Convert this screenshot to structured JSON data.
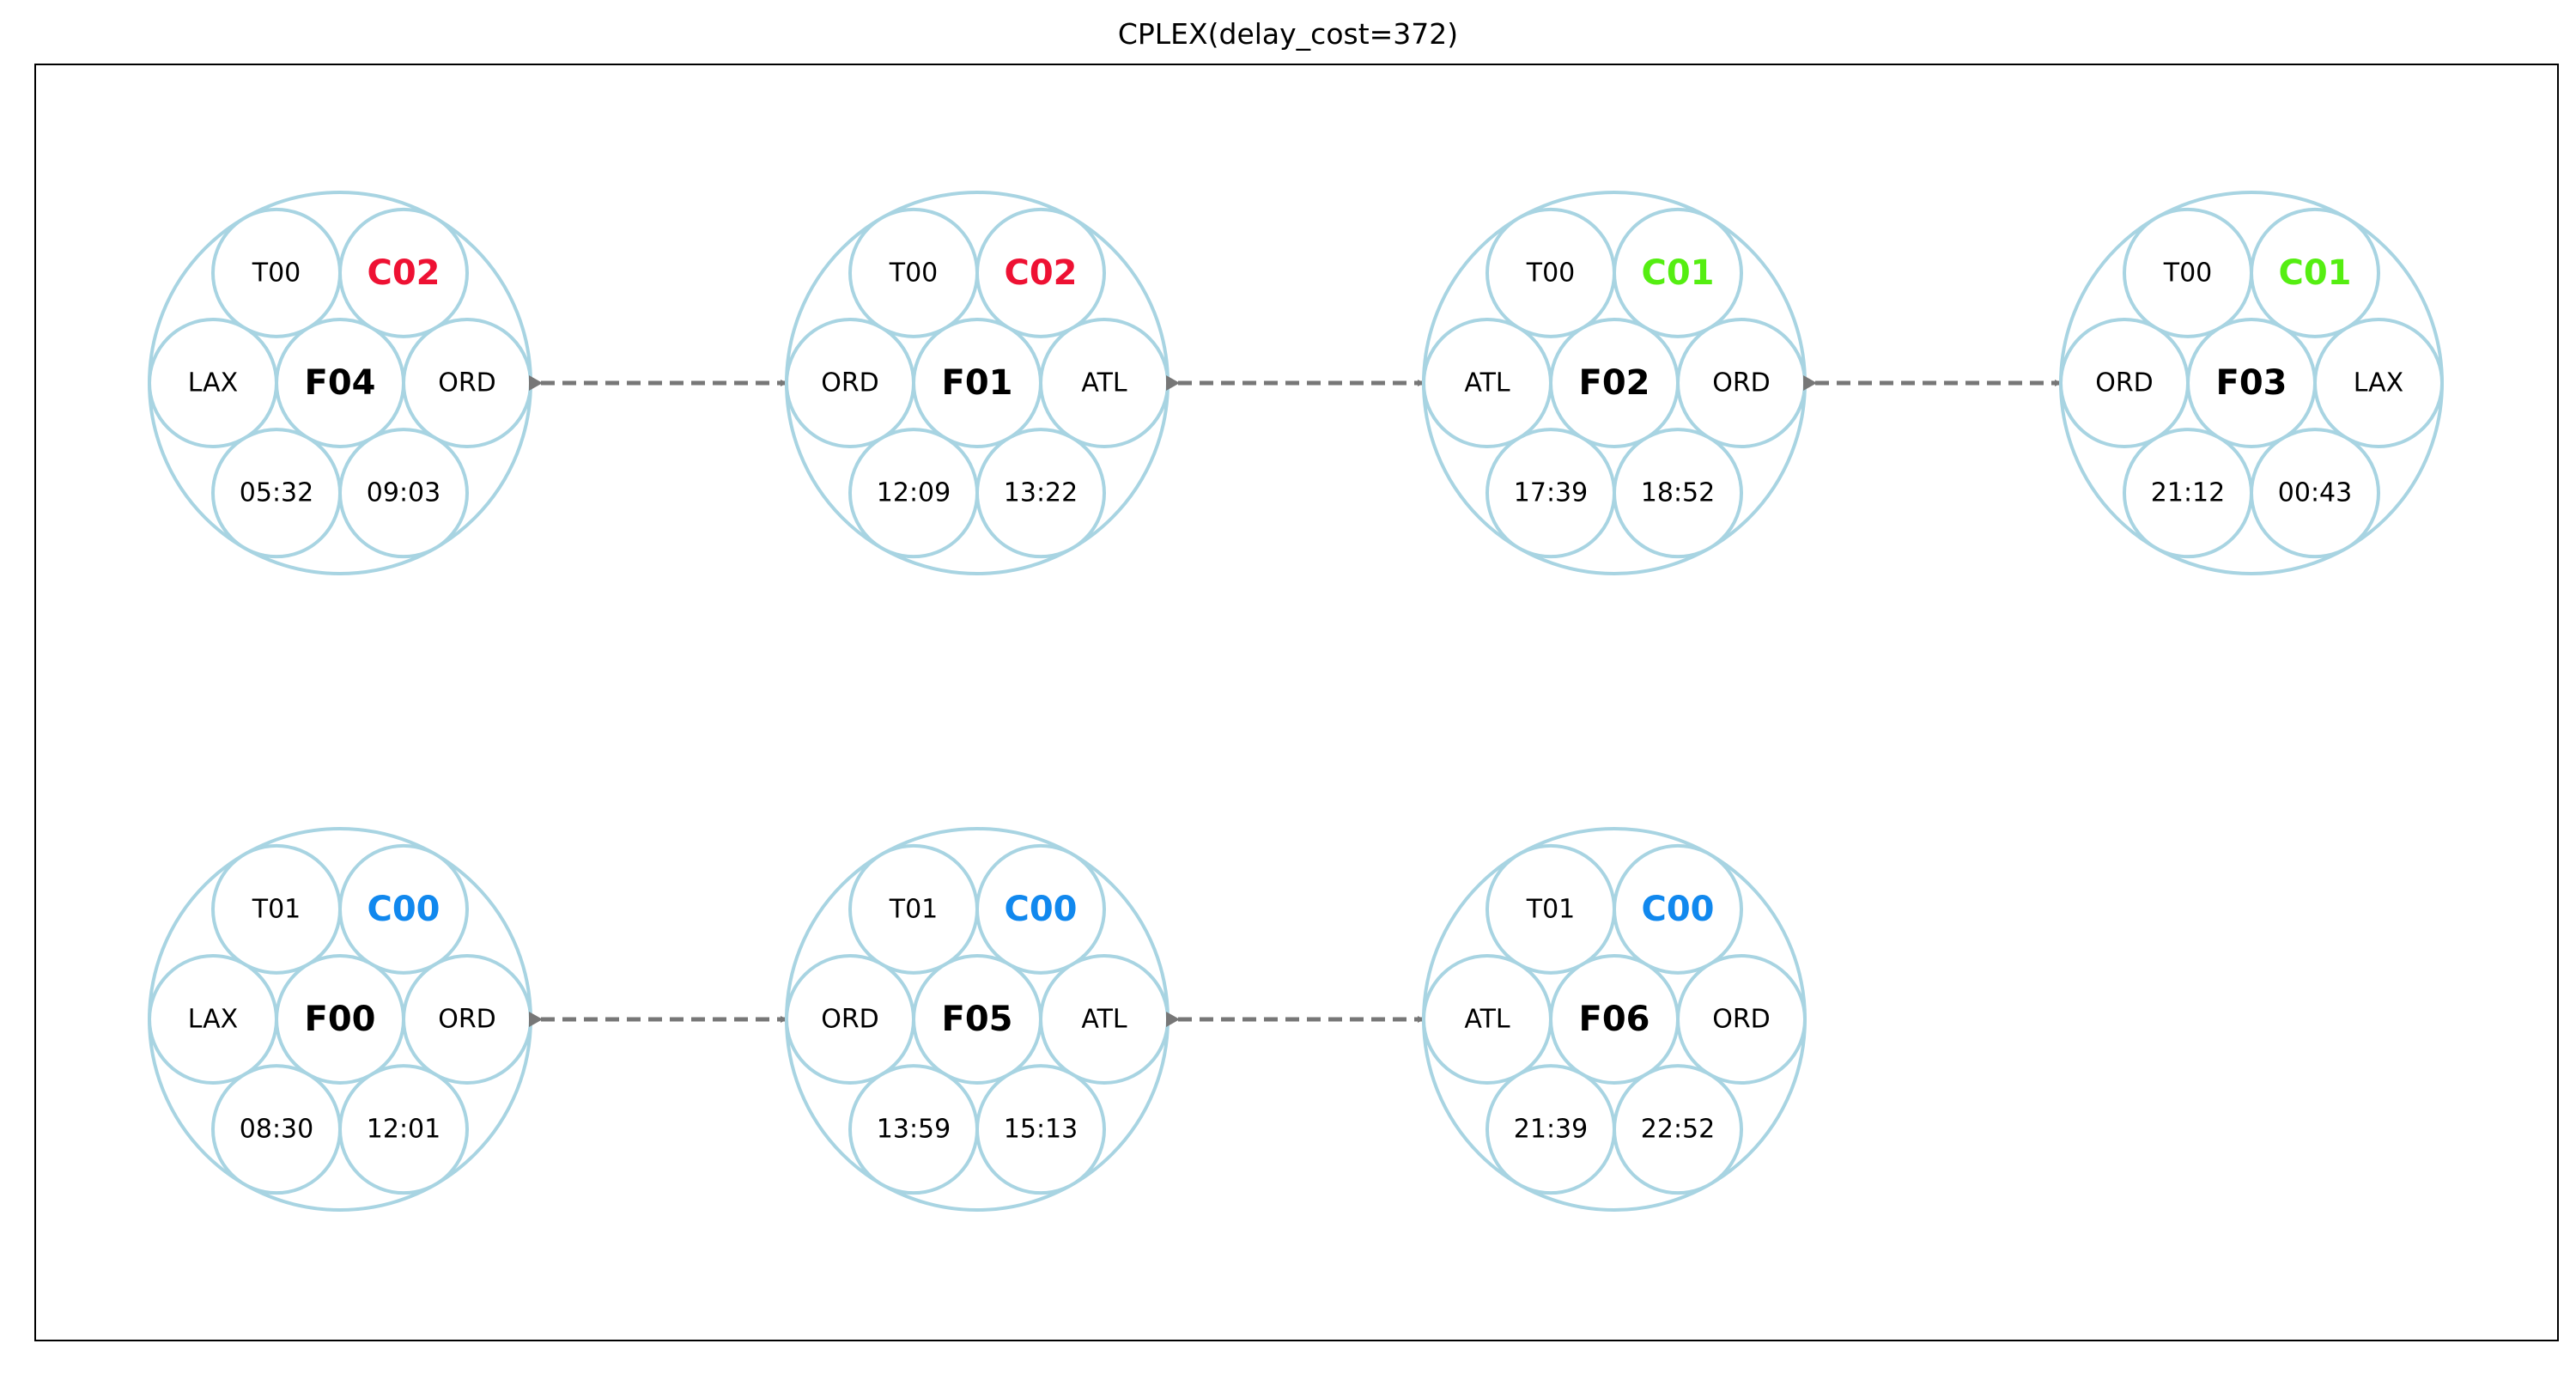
{
  "title": "CPLEX(delay_cost=372)",
  "crew_colors": {
    "C00": "#1188ee",
    "C01": "#55ee11",
    "C02": "#ee1133"
  },
  "chains": [
    {
      "flights": [
        {
          "id": "F04",
          "crew": "C02",
          "tail": "T00",
          "origin": "LAX",
          "dest": "ORD",
          "dep": "05:32",
          "arr": "09:03"
        },
        {
          "id": "F01",
          "crew": "C02",
          "tail": "T00",
          "origin": "ORD",
          "dest": "ATL",
          "dep": "12:09",
          "arr": "13:22"
        },
        {
          "id": "F02",
          "crew": "C01",
          "tail": "T00",
          "origin": "ATL",
          "dest": "ORD",
          "dep": "17:39",
          "arr": "18:52"
        },
        {
          "id": "F03",
          "crew": "C01",
          "tail": "T00",
          "origin": "ORD",
          "dest": "LAX",
          "dep": "21:12",
          "arr": "00:43"
        }
      ]
    },
    {
      "flights": [
        {
          "id": "F00",
          "crew": "C00",
          "tail": "T01",
          "origin": "LAX",
          "dest": "ORD",
          "dep": "08:30",
          "arr": "12:01"
        },
        {
          "id": "F05",
          "crew": "C00",
          "tail": "T01",
          "origin": "ORD",
          "dest": "ATL",
          "dep": "13:59",
          "arr": "15:13"
        },
        {
          "id": "F06",
          "crew": "C00",
          "tail": "T01",
          "origin": "ATL",
          "dest": "ORD",
          "dep": "21:39",
          "arr": "22:52"
        }
      ]
    }
  ]
}
